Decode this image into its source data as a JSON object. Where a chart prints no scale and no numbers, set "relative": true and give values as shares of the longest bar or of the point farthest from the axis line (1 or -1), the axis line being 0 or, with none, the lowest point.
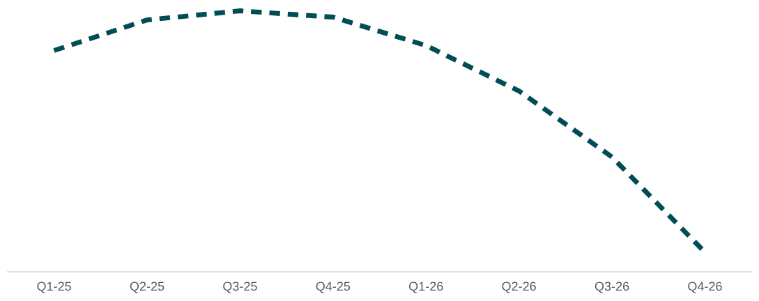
{
  "chart_data": {
    "type": "line",
    "relative": true,
    "categories": [
      "Q1-25",
      "Q2-25",
      "Q3-25",
      "Q4-25",
      "Q1-26",
      "Q2-26",
      "Q3-26",
      "Q4-26"
    ],
    "series": [
      {
        "color": "#004d55",
        "values": [
          0.848,
          0.965,
          1,
          0.976,
          0.867,
          0.693,
          0.44,
          0.075
        ]
      }
    ],
    "line_style": "dashed",
    "marker": "none",
    "grid": false,
    "legend": false
  }
}
